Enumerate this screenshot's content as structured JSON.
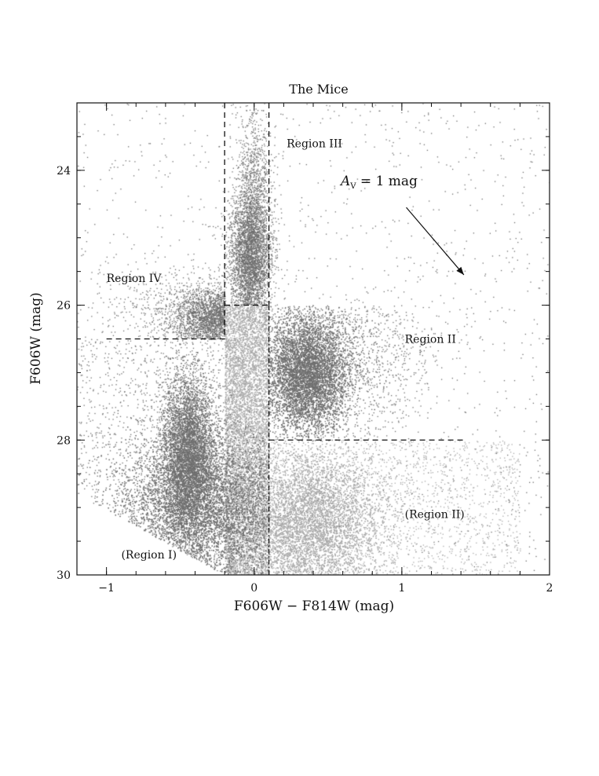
{
  "chart_data": {
    "type": "scatter",
    "title": "The Mice",
    "xlabel": "F606W − F814W (mag)",
    "ylabel": "F606W (mag)",
    "xlim": [
      -1.2,
      2.0
    ],
    "ylim": [
      30,
      23
    ],
    "y_inverted": true,
    "xticks": [
      -1,
      0,
      1,
      2
    ],
    "xtick_labels": [
      "−1",
      "0",
      "1",
      "2"
    ],
    "yticks": [
      24,
      26,
      28,
      30
    ],
    "ytick_labels": [
      "24",
      "26",
      "28",
      "30"
    ],
    "grid": false,
    "point_colors": {
      "dark": "#6e6e6e",
      "light": "#a8a8a8"
    },
    "region_labels": [
      {
        "text": "Region III",
        "x": 0.22,
        "y": 23.6
      },
      {
        "text": "Region IV",
        "x": -1.0,
        "y": 25.6
      },
      {
        "text": "Region II",
        "x": 1.02,
        "y": 26.5
      },
      {
        "text": "(Region II)",
        "x": 1.02,
        "y": 29.1
      },
      {
        "text": "(Region I)",
        "x": -0.9,
        "y": 29.7
      }
    ],
    "region_boundaries": [
      {
        "style": "dashed",
        "points": [
          [
            -0.2,
            22.0
          ],
          [
            -0.2,
            26.5
          ],
          [
            -1.0,
            26.5
          ]
        ]
      },
      {
        "style": "dashed",
        "points": [
          [
            0.1,
            22.0
          ],
          [
            0.1,
            26.0
          ]
        ]
      },
      {
        "style": "dashed",
        "points": [
          [
            -0.2,
            26.0
          ],
          [
            0.1,
            26.0
          ]
        ]
      },
      {
        "style": "dashed",
        "points": [
          [
            0.1,
            28.0
          ],
          [
            1.42,
            28.0
          ]
        ]
      },
      {
        "style": "dash-dot",
        "points": [
          [
            0.1,
            26.0
          ],
          [
            0.1,
            30.0
          ]
        ]
      }
    ],
    "reddening_vector": {
      "label_main": "A",
      "label_sub": "V",
      "label_rest": " = 1 mag",
      "from": [
        1.03,
        24.55
      ],
      "to": [
        1.42,
        25.55
      ]
    }
  }
}
